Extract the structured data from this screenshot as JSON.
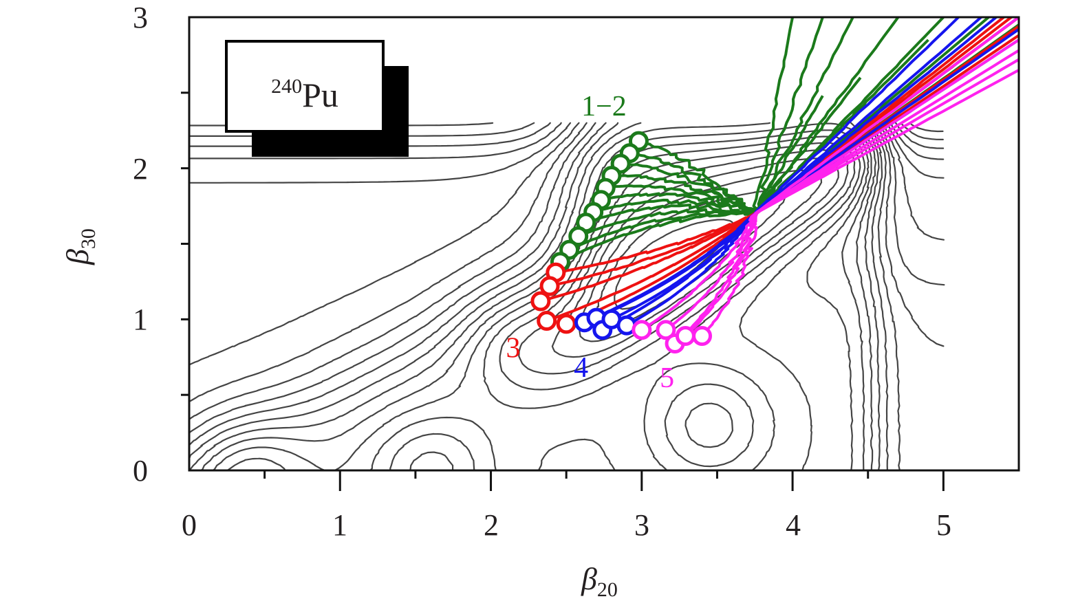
{
  "chart_data": {
    "type": "contour+line",
    "x_axis": {
      "label_symbol": "β",
      "label_sub": "20",
      "range": [
        0,
        5.5
      ],
      "ticks": [
        0,
        1,
        2,
        3,
        4,
        5
      ],
      "tick_labels": [
        "0",
        "1",
        "2",
        "3",
        "4",
        "5"
      ]
    },
    "y_axis": {
      "label_symbol": "β",
      "label_sub": "30",
      "range": [
        0,
        3
      ],
      "ticks": [
        0,
        1,
        2,
        3
      ],
      "tick_labels": [
        "0",
        "1",
        "2",
        "3"
      ]
    },
    "grid": false,
    "nucleus": {
      "mass": "240",
      "symbol": "Pu",
      "legend_placement": "top-left"
    },
    "contour_color": "#444444",
    "potential_minima": [
      {
        "x": 0.35,
        "y": 0.0
      },
      {
        "x": 1.6,
        "y": 0.0
      },
      {
        "x": 2.2,
        "y": 0.85
      },
      {
        "x": 3.45,
        "y": 0.3
      }
    ],
    "groups": [
      {
        "label": "1−2",
        "color": "#1b7a1b",
        "label_at": {
          "x": 2.6,
          "y": 2.35
        },
        "starts": [
          [
            2.98,
            2.18
          ],
          [
            2.92,
            2.1
          ],
          [
            2.86,
            2.03
          ],
          [
            2.8,
            1.95
          ],
          [
            2.76,
            1.87
          ],
          [
            2.73,
            1.79
          ],
          [
            2.68,
            1.71
          ],
          [
            2.63,
            1.64
          ],
          [
            2.58,
            1.55
          ],
          [
            2.52,
            1.46
          ],
          [
            2.46,
            1.38
          ]
        ],
        "ends": [
          [
            4.0,
            3.0
          ],
          [
            4.2,
            3.0
          ],
          [
            4.4,
            3.0
          ],
          [
            4.7,
            3.0
          ],
          [
            5.0,
            3.0
          ],
          [
            4.2,
            2.48
          ],
          [
            4.45,
            2.6
          ],
          [
            4.9,
            2.85
          ],
          [
            5.3,
            3.0
          ],
          [
            5.5,
            3.0
          ],
          [
            5.5,
            2.95
          ]
        ]
      },
      {
        "label": "3",
        "color": "#ee1111",
        "label_at": {
          "x": 2.1,
          "y": 0.75
        },
        "starts": [
          [
            2.43,
            1.31
          ],
          [
            2.39,
            1.22
          ],
          [
            2.33,
            1.12
          ],
          [
            2.37,
            0.99
          ],
          [
            2.5,
            0.97
          ]
        ],
        "ends": [
          [
            5.5,
            3.0
          ],
          [
            5.5,
            2.94
          ],
          [
            5.45,
            3.0
          ],
          [
            5.5,
            2.88
          ],
          [
            5.4,
            3.0
          ]
        ]
      },
      {
        "label": "4",
        "color": "#1515ee",
        "label_at": {
          "x": 2.55,
          "y": 0.62
        },
        "starts": [
          [
            2.62,
            0.98
          ],
          [
            2.7,
            1.01
          ],
          [
            2.74,
            0.93
          ],
          [
            2.8,
            1.0
          ],
          [
            2.9,
            0.96
          ]
        ],
        "ends": [
          [
            5.1,
            3.0
          ],
          [
            5.25,
            3.0
          ],
          [
            5.35,
            3.0
          ],
          [
            5.5,
            2.92
          ],
          [
            5.5,
            2.85
          ]
        ]
      },
      {
        "label": "5",
        "color": "#ff22ee",
        "label_at": {
          "x": 3.12,
          "y": 0.55
        },
        "starts": [
          [
            3.0,
            0.93
          ],
          [
            3.16,
            0.93
          ],
          [
            3.22,
            0.84
          ],
          [
            3.29,
            0.89
          ],
          [
            3.4,
            0.89
          ]
        ],
        "ends": [
          [
            5.5,
            3.0
          ],
          [
            5.5,
            2.85
          ],
          [
            5.5,
            2.78
          ],
          [
            5.5,
            2.72
          ],
          [
            5.5,
            2.65
          ]
        ]
      }
    ]
  }
}
